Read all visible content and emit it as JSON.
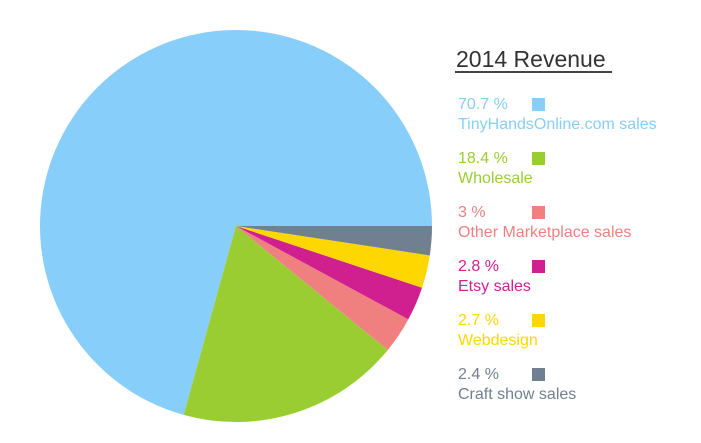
{
  "chart_data": {
    "type": "pie",
    "title": "2014 Revenue",
    "legend_placement": "right",
    "slices": [
      {
        "label": "TinyHandsOnline.com sales",
        "value": 70.7,
        "value_label": "70.7 %",
        "color": "#87CEFA"
      },
      {
        "label": "Wholesale",
        "value": 18.4,
        "value_label": "18.4 %",
        "color": "#9ACD32"
      },
      {
        "label": "Other Marketplace sales",
        "value": 3,
        "value_label": "3 %",
        "color": "#F08080"
      },
      {
        "label": "Etsy sales",
        "value": 2.8,
        "value_label": "2.8 %",
        "color": "#D02090"
      },
      {
        "label": "Webdesign",
        "value": 2.7,
        "value_label": "2.7 %",
        "color": "#FFD700"
      },
      {
        "label": "Craft show sales",
        "value": 2.4,
        "value_label": "2.4 %",
        "color": "#708090"
      }
    ]
  }
}
